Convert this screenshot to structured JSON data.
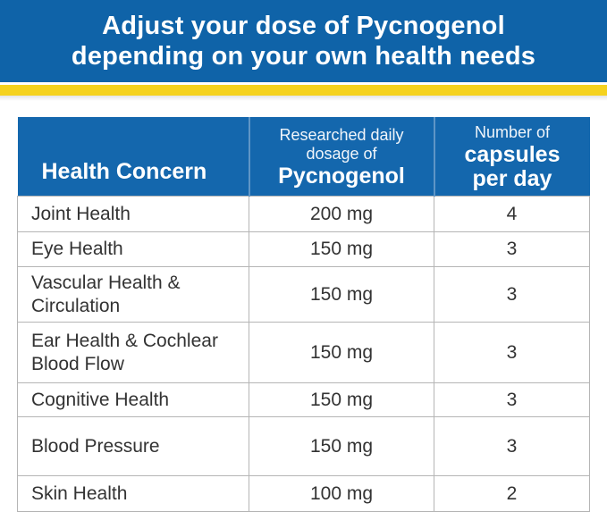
{
  "banner": {
    "line1": "Adjust your dose of Pycnogenol",
    "line2": "depending on your own health needs"
  },
  "table": {
    "headers": {
      "concern": "Health Concern",
      "dosage_small_1": "Researched daily",
      "dosage_small_2": "dosage of",
      "dosage_big": "Pycnogenol",
      "capsules_small": "Number of",
      "capsules_big_1": "capsules",
      "capsules_big_2": "per day"
    },
    "rows": [
      {
        "concern_1": "Joint Health",
        "concern_2": "",
        "dose": "200 mg",
        "capsules": "4"
      },
      {
        "concern_1": "Eye Health",
        "concern_2": "",
        "dose": "150 mg",
        "capsules": "3"
      },
      {
        "concern_1": "Vascular Health &",
        "concern_2": "Circulation",
        "dose": "150 mg",
        "capsules": "3"
      },
      {
        "concern_1": "Ear Health & Cochlear",
        "concern_2": "Blood Flow",
        "dose": "150 mg",
        "capsules": "3"
      },
      {
        "concern_1": "Cognitive Health",
        "concern_2": "",
        "dose": "150 mg",
        "capsules": "3"
      },
      {
        "concern_1": "Blood Pressure",
        "concern_2": "",
        "dose": "150 mg",
        "capsules": "3"
      },
      {
        "concern_1": "Skin Health",
        "concern_2": "",
        "dose": "100 mg",
        "capsules": "2"
      }
    ]
  },
  "colors": {
    "banner_blue": "#0f63a8",
    "header_blue": "#1467ad",
    "accent_yellow": "#f5d21e"
  }
}
